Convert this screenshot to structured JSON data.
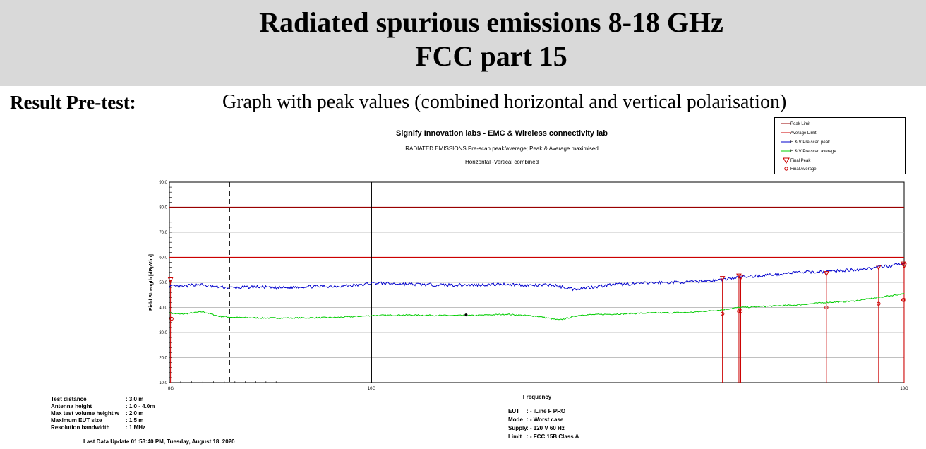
{
  "header": {
    "line1": "Radiated spurious emissions 8-18 GHz",
    "line2": "FCC part 15"
  },
  "result": {
    "label": "Result Pre-test:",
    "description": "Graph with peak values (combined horizontal and vertical polarisation)"
  },
  "colors": {
    "limit": "#990000",
    "peak": "#0000cc",
    "average": "#00cc00",
    "final": "#cc0000",
    "grid": "#c0c0c0"
  },
  "chart_data": {
    "type": "line",
    "title": "Signify Innovation labs - EMC & Wireless connectivity lab",
    "subtitle": "RADIATED EMISSIONS Pre-scan peak/average; Peak & Average maximised",
    "subtitle2": "Horizontal -Vertical combined",
    "xlabel": "Frequency",
    "ylabel": "Field Strength [dBµV/m]",
    "x_scale": "log",
    "xlim_hz": [
      8000000000,
      18000000000
    ],
    "ylim": [
      10,
      90
    ],
    "yticks": [
      10,
      20,
      30,
      40,
      50,
      60,
      70,
      80,
      90
    ],
    "ytick_labels": [
      "10.0",
      "20.0",
      "30.0",
      "40.0",
      "50.0",
      "60.0",
      "70.0",
      "80.0",
      "90.0"
    ],
    "xtick_labels": [
      {
        "label": "8G",
        "freq_ghz": 8
      },
      {
        "label": "10G",
        "freq_ghz": 10
      },
      {
        "label": "18G",
        "freq_ghz": 18
      }
    ],
    "grid": true,
    "legend_position": "top-right",
    "legend": [
      {
        "label": "Peak Limit",
        "symbol": "line",
        "color": "#990000"
      },
      {
        "label": "Average Limit",
        "symbol": "line",
        "color": "#cc0000"
      },
      {
        "label": "H & V Pre-scan peak",
        "symbol": "line",
        "color": "#0000cc"
      },
      {
        "label": "H & V Pre-scan average",
        "symbol": "line",
        "color": "#00cc00"
      },
      {
        "label": "Final Peak",
        "symbol": "triangle",
        "color": "#cc0000"
      },
      {
        "label": "Final Average",
        "symbol": "circle",
        "color": "#cc0000"
      }
    ],
    "series": [
      {
        "name": "Peak Limit",
        "color": "#990000",
        "x_ghz": [
          8,
          18
        ],
        "values": [
          80,
          80
        ]
      },
      {
        "name": "Average Limit",
        "color": "#cc0000",
        "x_ghz": [
          8,
          18
        ],
        "values": [
          60,
          60
        ]
      },
      {
        "name": "H & V Pre-scan peak",
        "color": "#0000cc",
        "x_ghz": [
          8.0,
          8.1,
          8.25,
          8.4,
          8.6,
          8.8,
          9.0,
          9.3,
          9.6,
          9.9,
          10.0,
          10.4,
          10.8,
          11.2,
          11.6,
          11.9,
          12.2,
          12.5,
          13.0,
          13.6,
          14.2,
          14.6,
          15.0,
          15.5,
          16.0,
          16.5,
          17.0,
          17.5,
          18.0
        ],
        "values": [
          48.5,
          48.2,
          49.3,
          48.3,
          47.8,
          48.3,
          47.8,
          48.3,
          48.5,
          49.0,
          49.8,
          49.3,
          49.0,
          49.0,
          49.3,
          48.8,
          49.0,
          47.3,
          49.0,
          49.8,
          50.2,
          50.8,
          52.0,
          53.0,
          54.0,
          54.3,
          55.0,
          56.0,
          57.5
        ]
      },
      {
        "name": "H & V Pre-scan average",
        "color": "#00cc00",
        "x_ghz": [
          8.0,
          8.1,
          8.2,
          8.3,
          8.45,
          8.6,
          8.9,
          9.2,
          9.6,
          9.9,
          10.0,
          10.4,
          10.8,
          11.2,
          11.6,
          12.0,
          12.3,
          12.6,
          13.0,
          13.6,
          14.2,
          14.7,
          15.0,
          15.5,
          16.0,
          16.5,
          17.0,
          17.5,
          18.0
        ],
        "values": [
          37.8,
          37.3,
          37.8,
          38.3,
          36.5,
          36.0,
          35.8,
          35.8,
          36.0,
          36.5,
          36.8,
          37.0,
          36.8,
          36.8,
          37.3,
          36.5,
          35.0,
          37.0,
          37.3,
          37.8,
          38.0,
          39.0,
          40.0,
          40.5,
          41.0,
          42.0,
          42.5,
          44.0,
          45.5
        ]
      }
    ],
    "final_peak": [
      {
        "x_ghz": 8.01,
        "value": 51.0
      },
      {
        "x_ghz": 14.73,
        "value": 51.5
      },
      {
        "x_ghz": 15.0,
        "value": 52.5
      },
      {
        "x_ghz": 15.03,
        "value": 52.0
      },
      {
        "x_ghz": 16.52,
        "value": 53.5
      },
      {
        "x_ghz": 17.5,
        "value": 56.0
      },
      {
        "x_ghz": 17.98,
        "value": 57.3
      },
      {
        "x_ghz": 18.0,
        "value": 56.5
      }
    ],
    "final_average": [
      {
        "x_ghz": 8.02,
        "value": 35.5
      },
      {
        "x_ghz": 14.73,
        "value": 37.5
      },
      {
        "x_ghz": 15.0,
        "value": 38.5
      },
      {
        "x_ghz": 15.03,
        "value": 38.5
      },
      {
        "x_ghz": 16.52,
        "value": 40.0
      },
      {
        "x_ghz": 17.5,
        "value": 41.5
      },
      {
        "x_ghz": 17.98,
        "value": 43.0
      },
      {
        "x_ghz": 18.0,
        "value": 43.0
      }
    ],
    "markers": [
      {
        "x_ghz": 8.55,
        "style": "dashed"
      },
      {
        "x_ghz": 10.0,
        "style": "solid"
      }
    ],
    "annotation_point": {
      "x_ghz": 11.1,
      "value": 37.0
    }
  },
  "test_params": [
    {
      "label": "Test distance",
      "value": ": 3.0 m"
    },
    {
      "label": "Antenna height",
      "value": ": 1.0 - 4.0m"
    },
    {
      "label": "Max test volume height  w",
      "value": ": 2.0 m"
    },
    {
      "label": "Maximum EUT size",
      "value": ": 1.5 m"
    },
    {
      "label": "Resolution bandwidth",
      "value": ": 1 MHz"
    }
  ],
  "eut_info": [
    {
      "label": "EUT",
      "value": ": - iLine F PRO"
    },
    {
      "label": "Mode",
      "value": ": - Worst case"
    },
    {
      "label": "Supply",
      "value": ": - 120 V 60 Hz"
    },
    {
      "label": "Limit",
      "value": ": - FCC 15B Class A"
    }
  ],
  "footer": {
    "last_update": "Last Data Update 01:53:40 PM, Tuesday, August 18, 2020"
  }
}
